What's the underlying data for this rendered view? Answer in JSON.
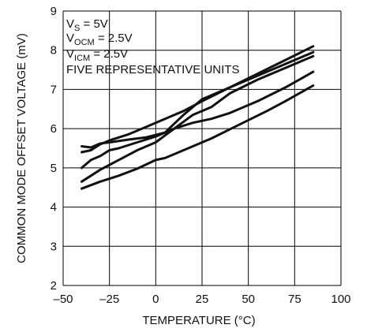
{
  "chart_data": {
    "type": "line",
    "title": "",
    "xlabel": "TEMPERATURE (°C)",
    "ylabel": "COMMON MODE OFFSET VOLTAGE (mV)",
    "xlim": [
      -50,
      100
    ],
    "ylim": [
      2,
      9
    ],
    "xticks": [
      "–50",
      "–25",
      "0",
      "25",
      "50",
      "75",
      "100"
    ],
    "yticks": [
      "2",
      "3",
      "4",
      "5",
      "6",
      "7",
      "8",
      "9"
    ],
    "grid": true,
    "annotations": {
      "vs": {
        "main": "V",
        "sub": "S",
        "rest": " = 5V"
      },
      "vocm": {
        "main": "V",
        "sub": "OCM",
        "rest": " = 2.5V"
      },
      "vicm": {
        "main": "V",
        "sub": "ICM",
        "rest": " = 2.5V"
      },
      "units": "FIVE REPRESENTATIVE UNITS"
    },
    "series": [
      {
        "x": [
          -40,
          -35,
          -30,
          -25,
          -15,
          -5,
          5,
          15,
          25,
          40,
          55,
          70,
          85
        ],
        "y": [
          5.55,
          5.52,
          5.62,
          5.65,
          5.72,
          5.78,
          5.9,
          6.35,
          6.75,
          7.05,
          7.4,
          7.75,
          8.1
        ]
      },
      {
        "x": [
          -40,
          -35,
          -30,
          -25,
          -15,
          -5,
          5,
          15,
          25,
          40,
          55,
          70,
          85
        ],
        "y": [
          5.4,
          5.45,
          5.6,
          5.7,
          5.85,
          6.05,
          6.25,
          6.45,
          6.7,
          7.05,
          7.35,
          7.65,
          7.95
        ]
      },
      {
        "x": [
          -40,
          -35,
          -30,
          -25,
          -20,
          -10,
          0,
          10,
          20,
          30,
          40,
          55,
          70,
          85
        ],
        "y": [
          5.0,
          5.2,
          5.3,
          5.45,
          5.5,
          5.65,
          5.8,
          6.0,
          6.35,
          6.55,
          6.9,
          7.25,
          7.55,
          7.85
        ]
      },
      {
        "x": [
          -40,
          -30,
          -20,
          -10,
          0,
          10,
          20,
          30,
          40,
          55,
          70,
          85
        ],
        "y": [
          4.65,
          4.95,
          5.2,
          5.45,
          5.65,
          6.0,
          6.15,
          6.25,
          6.4,
          6.7,
          7.05,
          7.45
        ]
      },
      {
        "x": [
          -40,
          -30,
          -20,
          -10,
          0,
          5,
          15,
          30,
          45,
          60,
          70,
          85
        ],
        "y": [
          4.47,
          4.65,
          4.8,
          4.98,
          5.2,
          5.25,
          5.45,
          5.75,
          6.1,
          6.45,
          6.7,
          7.1
        ]
      }
    ]
  }
}
